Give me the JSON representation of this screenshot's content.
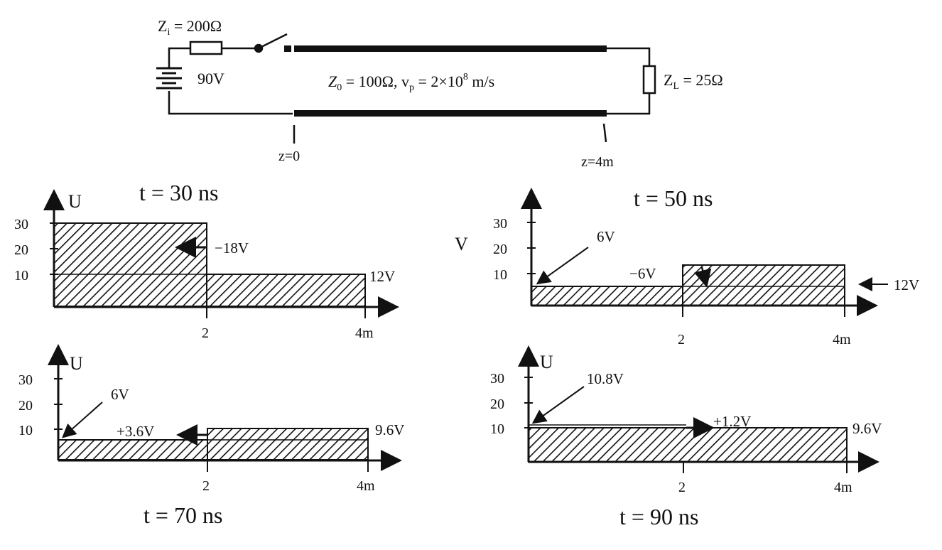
{
  "circuit": {
    "zi_label": "Z",
    "zi_sub": "i",
    "zi_value": " = 200Ω",
    "source_label": "90V",
    "line_label_z0": "Z",
    "line_label_z0_sub": "0",
    "line_label_rest": " = 100Ω, v",
    "line_label_vp_sub": "p",
    "line_label_vp": " = 2×10",
    "line_label_exp": "8",
    "line_label_unit": " m/s",
    "zl_label": "Z",
    "zl_sub": "L",
    "zl_value": " = 25Ω",
    "z0_pos": "z=0",
    "z4_pos": "z=4m"
  },
  "plots": [
    {
      "time_label": "t = 30 ns",
      "axis_label": "U",
      "y_ticks": [
        "30",
        "20",
        "10"
      ],
      "x_ticks": [
        "2",
        "4m"
      ],
      "annotations": [
        "−18V",
        "12V"
      ]
    },
    {
      "time_label": "t = 50 ns",
      "axis_label": "V",
      "y_ticks": [
        "30",
        "20",
        "10"
      ],
      "x_ticks": [
        "2",
        "4m"
      ],
      "annotations": [
        "6V",
        "−6V",
        "12V"
      ]
    },
    {
      "time_label": "t = 70 ns",
      "axis_label": "U",
      "y_ticks": [
        "30",
        "20",
        "10"
      ],
      "x_ticks": [
        "2",
        "4m"
      ],
      "annotations": [
        "6V",
        "+3.6V",
        "9.6V"
      ]
    },
    {
      "time_label": "t = 90 ns",
      "axis_label": "U",
      "y_ticks": [
        "30",
        "20",
        "10"
      ],
      "x_ticks": [
        "2",
        "4m"
      ],
      "annotations": [
        "10.8V",
        "+1.2V",
        "9.6V"
      ]
    }
  ]
}
